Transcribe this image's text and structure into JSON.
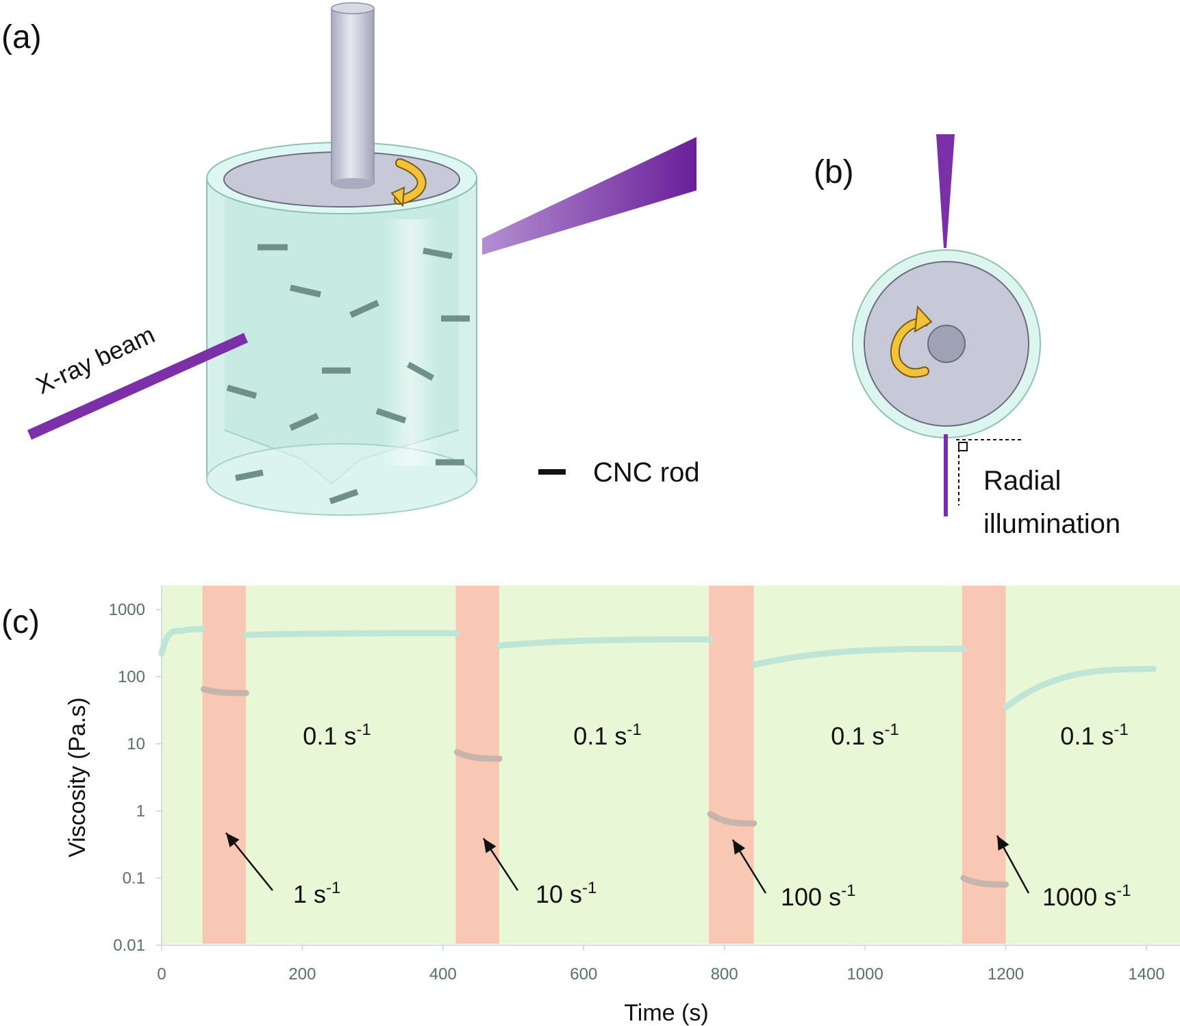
{
  "panels": {
    "a": {
      "label": "(a)",
      "beam_label": "X-ray beam",
      "legend_label": "CNC rod"
    },
    "b": {
      "label": "(b)",
      "illumination_line1": "Radial",
      "illumination_line2": "illumination"
    },
    "c": {
      "label": "(c)"
    }
  },
  "colors": {
    "beam": "#7b2fa8",
    "cup": "#ccefe8",
    "bob": "#c7c9d8",
    "rod": "#6e9088",
    "arrow": "#f2c338",
    "rest_band": "#e8f8d6",
    "shear_band": "#f8c8b4",
    "rest_series": "#bfe5d7",
    "shear_series": "#c7b5ad"
  },
  "chart_data": {
    "type": "scatter",
    "xlabel": "Time (s)",
    "ylabel": "Viscosity (Pa.s)",
    "y_scale": "log",
    "xlim": [
      0,
      1420
    ],
    "ylim": [
      0.01,
      2000
    ],
    "x_ticks": [
      "0",
      "200",
      "400",
      "600",
      "800",
      "1000",
      "1200",
      "1400"
    ],
    "y_ticks": [
      "0.01",
      "0.1",
      "1",
      "10",
      "100",
      "1000"
    ],
    "shaded_intervals": [
      {
        "kind": "rest",
        "start": 0,
        "end": 58
      },
      {
        "kind": "shear",
        "start": 58,
        "end": 120
      },
      {
        "kind": "rest",
        "start": 120,
        "end": 418
      },
      {
        "kind": "shear",
        "start": 418,
        "end": 480
      },
      {
        "kind": "rest",
        "start": 480,
        "end": 778
      },
      {
        "kind": "shear",
        "start": 778,
        "end": 842
      },
      {
        "kind": "rest",
        "start": 842,
        "end": 1138
      },
      {
        "kind": "shear",
        "start": 1138,
        "end": 1200
      },
      {
        "kind": "rest",
        "start": 1200,
        "end": 1420
      }
    ],
    "annotations": {
      "rest": [
        {
          "base": "0.1 s",
          "exp": "-1"
        },
        {
          "base": "0.1 s",
          "exp": "-1"
        },
        {
          "base": "0.1 s",
          "exp": "-1"
        },
        {
          "base": "0.1 s",
          "exp": "-1"
        }
      ],
      "shear": [
        {
          "base": "1 s",
          "exp": "-1"
        },
        {
          "base": "10 s",
          "exp": "-1"
        },
        {
          "base": "100 s",
          "exp": "-1"
        },
        {
          "base": "1000 s",
          "exp": "-1"
        }
      ]
    },
    "series": [
      {
        "kind": "rest",
        "segments": [
          {
            "start": 0,
            "end": 58,
            "values": [
              220,
              480,
              510
            ]
          },
          {
            "start": 120,
            "end": 420,
            "values": [
              420,
              445
            ]
          },
          {
            "start": 480,
            "end": 780,
            "values": [
              290,
              360
            ]
          },
          {
            "start": 842,
            "end": 1140,
            "values": [
              150,
              260
            ]
          },
          {
            "start": 1200,
            "end": 1410,
            "values": [
              35,
              130
            ]
          }
        ]
      },
      {
        "kind": "shear",
        "segments": [
          {
            "start": 60,
            "end": 120,
            "values": [
              65,
              57
            ]
          },
          {
            "start": 420,
            "end": 480,
            "values": [
              7.5,
              6
            ]
          },
          {
            "start": 780,
            "end": 842,
            "values": [
              0.9,
              0.65
            ]
          },
          {
            "start": 1140,
            "end": 1200,
            "values": [
              0.1,
              0.08
            ]
          }
        ]
      }
    ]
  }
}
